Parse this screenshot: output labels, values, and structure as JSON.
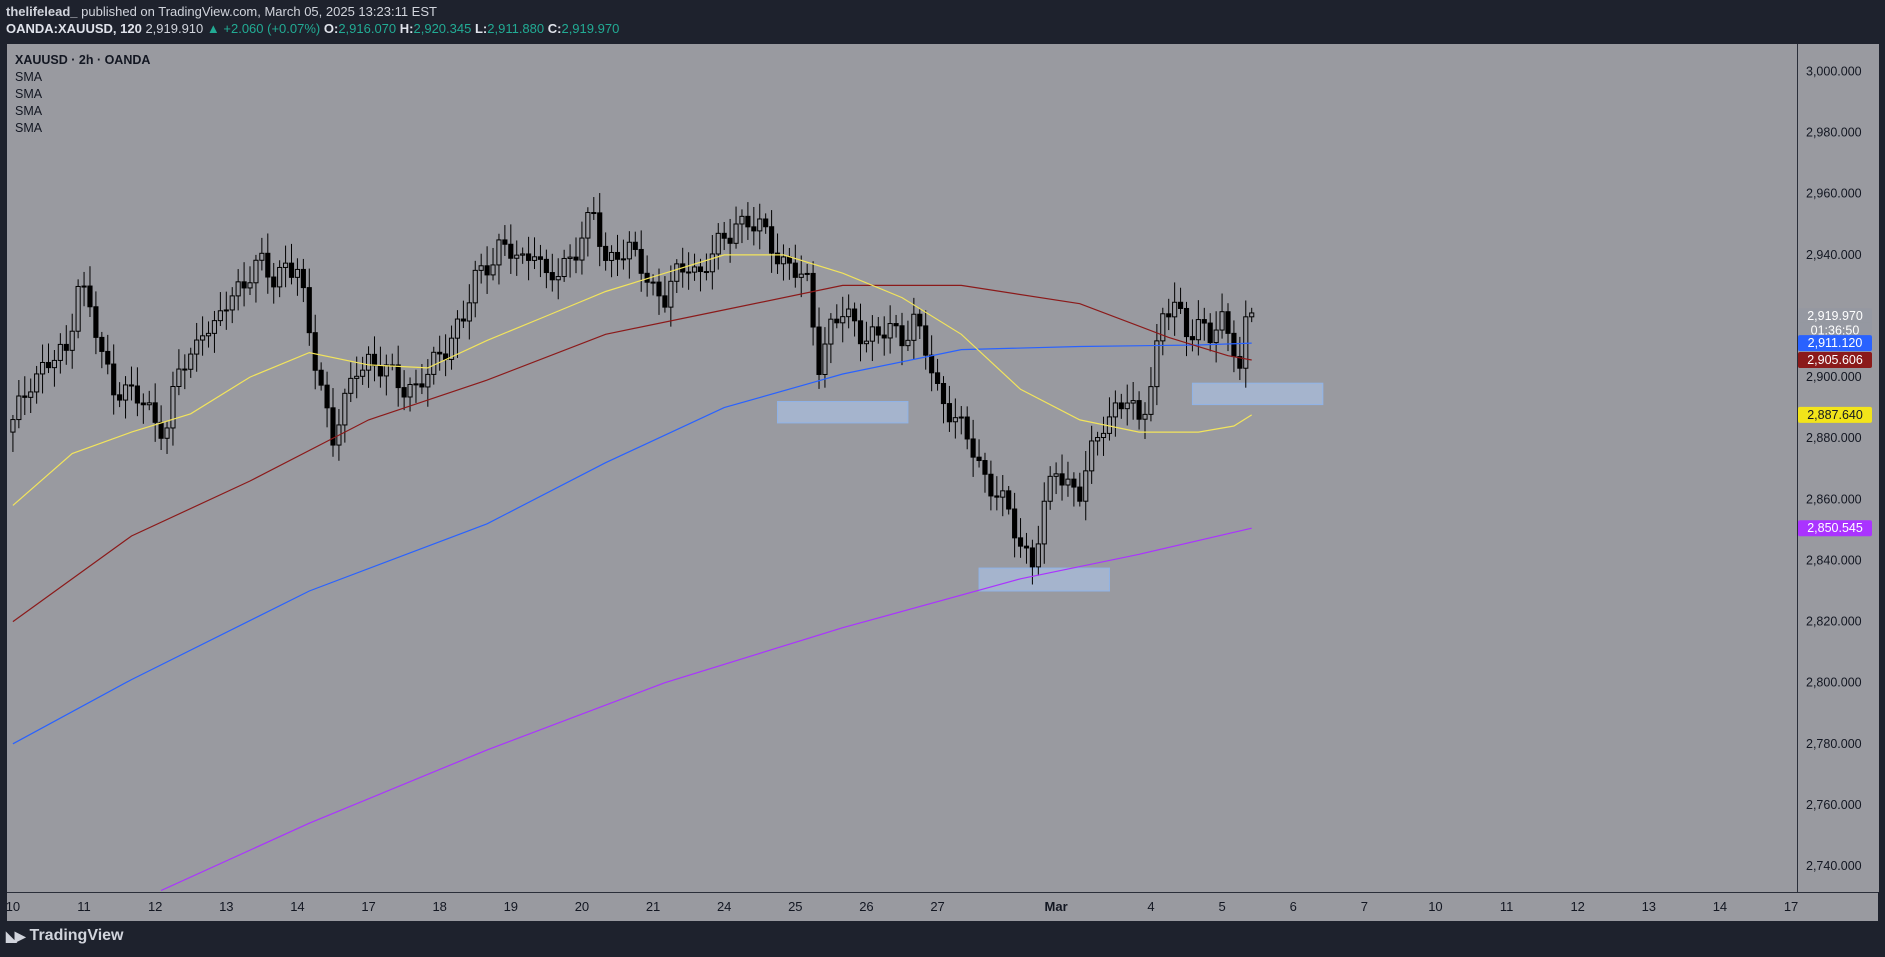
{
  "header": {
    "author": "thelifelead_",
    "published": "published on TradingView.com, March 05, 2025 13:23:11 EST",
    "symbol": "OANDA:XAUUSD, 120",
    "last": "2,919.910",
    "change": "▲ +2.060 (+0.07%)",
    "o_label": "O:",
    "o": "2,916.070",
    "h_label": "H:",
    "h": "2,920.345",
    "l_label": "L:",
    "l": "2,911.880",
    "c_label": "C:",
    "c": "2,919.970"
  },
  "legend": {
    "title": "XAUUSD · 2h · OANDA",
    "indicators": [
      "SMA",
      "SMA",
      "SMA",
      "SMA"
    ]
  },
  "footer": {
    "brand": "TradingView",
    "icon": "tradingview-logo-icon"
  },
  "colors": {
    "pane": "#999aa0",
    "candle": "#000000",
    "sma_yellow": "#f2e45c",
    "sma_red": "#8b1a1a",
    "sma_blue": "#2962ff",
    "sma_purple": "#aa33ff",
    "zone": "#aecbf2"
  },
  "chart_data": {
    "type": "candlestick",
    "title": "XAUUSD · 2h · OANDA",
    "y_ticks": [
      "3,000.000",
      "2,980.000",
      "2,960.000",
      "2,940.000",
      "2,920.000",
      "2,900.000",
      "2,880.000",
      "2,860.000",
      "2,840.000",
      "2,820.000",
      "2,800.000",
      "2,780.000",
      "2,760.000",
      "2,740.000"
    ],
    "y_tick_values": [
      3000,
      2980,
      2960,
      2940,
      2920,
      2900,
      2880,
      2860,
      2840,
      2820,
      2800,
      2780,
      2760,
      2740
    ],
    "ylim": [
      2731.5,
      3009
    ],
    "x_ticks": [
      "10",
      "11",
      "12",
      "13",
      "14",
      "17",
      "18",
      "19",
      "20",
      "21",
      "24",
      "25",
      "26",
      "27",
      "Mar",
      "4",
      "5",
      "6",
      "7",
      "10",
      "11",
      "12",
      "13",
      "14",
      "17"
    ],
    "x_tick_index": [
      0,
      12,
      24,
      36,
      48,
      60,
      72,
      84,
      96,
      108,
      120,
      132,
      144,
      156,
      176,
      192,
      204,
      216,
      228,
      240,
      252,
      264,
      276,
      288,
      300
    ],
    "x_range": [
      -1,
      301
    ],
    "price_labels": [
      {
        "text": "2,919.970",
        "value": 2919.97,
        "bg": "#9598a1",
        "fg": "#ffffff"
      },
      {
        "text": "01:36:50",
        "value": 2915.3,
        "bg": "#9598a1",
        "fg": "#ffffff"
      },
      {
        "text": "2,911.120",
        "value": 2911.12,
        "bg": "#2962ff",
        "fg": "#ffffff"
      },
      {
        "text": "2,905.606",
        "value": 2905.606,
        "bg": "#8b1a1a",
        "fg": "#ffffff"
      },
      {
        "text": "2,887.640",
        "value": 2887.64,
        "bg": "#f2e41a",
        "fg": "#131722"
      },
      {
        "text": "2,850.545",
        "value": 2850.545,
        "bg": "#aa33ff",
        "fg": "#ffffff"
      }
    ],
    "zones": [
      {
        "x0": 129,
        "x1": 151,
        "y0": 2885,
        "y1": 2892
      },
      {
        "x0": 163,
        "x1": 185,
        "y0": 2830,
        "y1": 2837.5
      },
      {
        "x0": 199,
        "x1": 221,
        "y0": 2891,
        "y1": 2898
      }
    ],
    "candle_anchors": [
      [
        0,
        2884
      ],
      [
        3,
        2900
      ],
      [
        6,
        2904
      ],
      [
        9,
        2908
      ],
      [
        11,
        2932
      ],
      [
        13,
        2922
      ],
      [
        15,
        2906
      ],
      [
        17,
        2898
      ],
      [
        20,
        2894
      ],
      [
        23,
        2889
      ],
      [
        26,
        2883
      ],
      [
        28,
        2902
      ],
      [
        30,
        2906
      ],
      [
        32,
        2918
      ],
      [
        34,
        2914
      ],
      [
        36,
        2924
      ],
      [
        38,
        2930
      ],
      [
        40,
        2934
      ],
      [
        42,
        2936
      ],
      [
        44,
        2932
      ],
      [
        46,
        2938
      ],
      [
        48,
        2934
      ],
      [
        50,
        2914
      ],
      [
        52,
        2898
      ],
      [
        54,
        2880
      ],
      [
        56,
        2890
      ],
      [
        58,
        2904
      ],
      [
        60,
        2906
      ],
      [
        62,
        2902
      ],
      [
        64,
        2900
      ],
      [
        66,
        2898
      ],
      [
        68,
        2896
      ],
      [
        70,
        2900
      ],
      [
        72,
        2908
      ],
      [
        74,
        2914
      ],
      [
        76,
        2918
      ],
      [
        78,
        2932
      ],
      [
        80,
        2938
      ],
      [
        82,
        2942
      ],
      [
        84,
        2940
      ],
      [
        86,
        2938
      ],
      [
        88,
        2944
      ],
      [
        90,
        2930
      ],
      [
        92,
        2934
      ],
      [
        94,
        2940
      ],
      [
        96,
        2946
      ],
      [
        98,
        2952
      ],
      [
        100,
        2938
      ],
      [
        102,
        2942
      ],
      [
        104,
        2940
      ],
      [
        106,
        2936
      ],
      [
        108,
        2930
      ],
      [
        110,
        2926
      ],
      [
        112,
        2932
      ],
      [
        114,
        2938
      ],
      [
        116,
        2934
      ],
      [
        118,
        2940
      ],
      [
        120,
        2944
      ],
      [
        122,
        2952
      ],
      [
        124,
        2950
      ],
      [
        126,
        2948
      ],
      [
        128,
        2944
      ],
      [
        130,
        2938
      ],
      [
        132,
        2934
      ],
      [
        134,
        2930
      ],
      [
        136,
        2906
      ],
      [
        138,
        2916
      ],
      [
        140,
        2920
      ],
      [
        142,
        2918
      ],
      [
        144,
        2914
      ],
      [
        146,
        2912
      ],
      [
        148,
        2916
      ],
      [
        150,
        2914
      ],
      [
        152,
        2918
      ],
      [
        154,
        2908
      ],
      [
        156,
        2896
      ],
      [
        158,
        2890
      ],
      [
        160,
        2882
      ],
      [
        162,
        2876
      ],
      [
        164,
        2868
      ],
      [
        166,
        2862
      ],
      [
        168,
        2854
      ],
      [
        170,
        2846
      ],
      [
        172,
        2840
      ],
      [
        174,
        2856
      ],
      [
        176,
        2870
      ],
      [
        178,
        2866
      ],
      [
        180,
        2862
      ],
      [
        182,
        2874
      ],
      [
        184,
        2886
      ],
      [
        186,
        2890
      ],
      [
        188,
        2892
      ],
      [
        190,
        2884
      ],
      [
        192,
        2900
      ],
      [
        194,
        2920
      ],
      [
        196,
        2922
      ],
      [
        198,
        2916
      ],
      [
        200,
        2918
      ],
      [
        202,
        2912
      ],
      [
        204,
        2918
      ],
      [
        206,
        2912
      ],
      [
        207,
        2904
      ],
      [
        208,
        2916
      ],
      [
        209,
        2920
      ]
    ],
    "sma_yellow": [
      [
        0,
        2858
      ],
      [
        10,
        2875
      ],
      [
        20,
        2882
      ],
      [
        30,
        2888
      ],
      [
        40,
        2900
      ],
      [
        50,
        2908
      ],
      [
        60,
        2904
      ],
      [
        70,
        2903
      ],
      [
        80,
        2912
      ],
      [
        90,
        2920
      ],
      [
        100,
        2928
      ],
      [
        110,
        2934
      ],
      [
        120,
        2940
      ],
      [
        130,
        2940
      ],
      [
        140,
        2934
      ],
      [
        150,
        2926
      ],
      [
        160,
        2914
      ],
      [
        170,
        2896
      ],
      [
        180,
        2886
      ],
      [
        190,
        2882
      ],
      [
        200,
        2882
      ],
      [
        206,
        2884
      ],
      [
        209,
        2887.64
      ]
    ],
    "sma_red": [
      [
        0,
        2820
      ],
      [
        20,
        2848
      ],
      [
        40,
        2866
      ],
      [
        60,
        2886
      ],
      [
        80,
        2899
      ],
      [
        100,
        2914
      ],
      [
        120,
        2922
      ],
      [
        140,
        2930
      ],
      [
        160,
        2930
      ],
      [
        180,
        2924
      ],
      [
        195,
        2913
      ],
      [
        205,
        2907
      ],
      [
        209,
        2905.606
      ]
    ],
    "sma_blue": [
      [
        0,
        2780
      ],
      [
        20,
        2801
      ],
      [
        50,
        2830
      ],
      [
        80,
        2852
      ],
      [
        100,
        2872
      ],
      [
        120,
        2890
      ],
      [
        140,
        2901
      ],
      [
        160,
        2909
      ],
      [
        180,
        2910
      ],
      [
        200,
        2910.5
      ],
      [
        209,
        2911.12
      ]
    ],
    "sma_purple": [
      [
        25,
        2732
      ],
      [
        50,
        2754
      ],
      [
        80,
        2778
      ],
      [
        110,
        2800
      ],
      [
        140,
        2818
      ],
      [
        170,
        2834
      ],
      [
        190,
        2842
      ],
      [
        209,
        2850.545
      ]
    ]
  }
}
